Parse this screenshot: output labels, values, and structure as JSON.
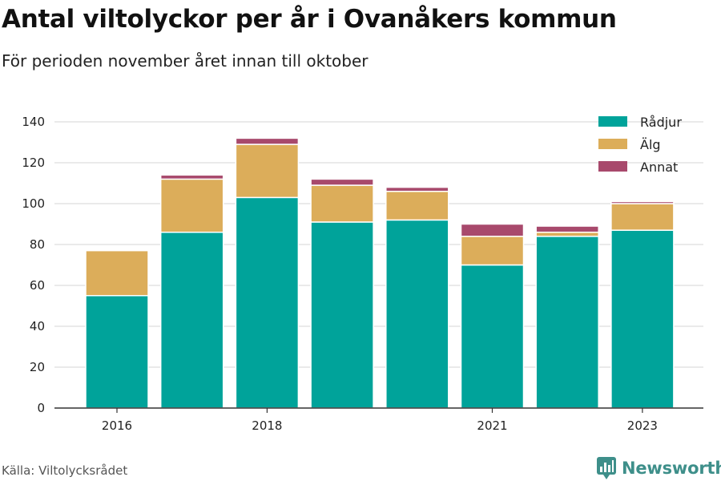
{
  "title": "Antal viltolyckor per år i Ovanåkers kommun",
  "subtitle": "För perioden november året innan till oktober",
  "source": "Källa: Viltolycksrådet",
  "brand": {
    "name": "Newsworthy",
    "icon": "newsworthy-logo-icon",
    "color": "#3e8f8a"
  },
  "chart_data": {
    "type": "bar",
    "stacked": true,
    "x": [
      2016,
      2017,
      2018,
      2019,
      2020,
      2021,
      2022,
      2023
    ],
    "x_tick_labels": [
      "2016",
      "2018",
      "2021",
      "2023"
    ],
    "x_tick_values": [
      2016,
      2018,
      2021,
      2023
    ],
    "ylim": [
      0,
      145
    ],
    "y_ticks": [
      0,
      20,
      40,
      60,
      80,
      100,
      120,
      140
    ],
    "grid": true,
    "legend_position": "top-right",
    "series": [
      {
        "name": "Rådjur",
        "color": "#00a39a",
        "values": [
          55,
          86,
          103,
          91,
          92,
          70,
          84,
          87
        ]
      },
      {
        "name": "Älg",
        "color": "#dcad5a",
        "values": [
          22,
          26,
          26,
          18,
          14,
          14,
          2,
          13
        ]
      },
      {
        "name": "Annat",
        "color": "#a8496c",
        "values": [
          0,
          2,
          3,
          3,
          2,
          6,
          3,
          1
        ]
      }
    ]
  }
}
